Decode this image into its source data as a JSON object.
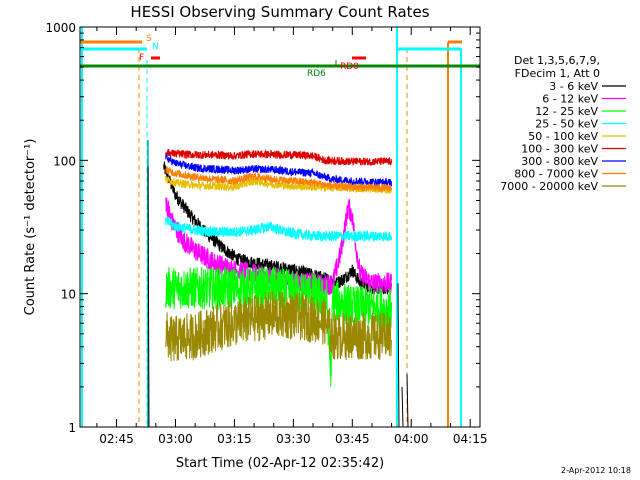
{
  "chart_data": {
    "type": "line",
    "title": "HESSI Observing Summary Count Rates",
    "xlabel": "Start Time (02-Apr-12 02:35:42)",
    "ylabel": "Count Rate (s⁻¹ detector⁻¹)",
    "y_scale": "log",
    "ylim": [
      1,
      1000
    ],
    "xlim": [
      "02:35:42",
      "04:17:30"
    ],
    "x_ticks": [
      "02:45",
      "03:00",
      "03:15",
      "03:30",
      "03:45",
      "04:00",
      "04:15"
    ],
    "y_ticks": [
      "1",
      "10",
      "100",
      "1000"
    ],
    "legend": {
      "header": [
        "Det 1,3,5,6,7,9,",
        "FDecim 1, Att 0"
      ],
      "position": "right"
    },
    "series": [
      {
        "name": "3 - 6 keV",
        "color": "#000000",
        "points": [
          [
            "02:57:00",
            90
          ],
          [
            "03:00:00",
            55
          ],
          [
            "03:04:00",
            38
          ],
          [
            "03:08:00",
            28
          ],
          [
            "03:12:00",
            22
          ],
          [
            "03:16:00",
            18
          ],
          [
            "03:20:00",
            17
          ],
          [
            "03:25:00",
            16
          ],
          [
            "03:30:00",
            15
          ],
          [
            "03:34:00",
            14
          ],
          [
            "03:38:00",
            13
          ],
          [
            "03:41:00",
            12
          ],
          [
            "03:43:00",
            13
          ],
          [
            "03:45:00",
            15
          ],
          [
            "03:47:00",
            12
          ],
          [
            "03:50:00",
            11
          ],
          [
            "03:54:00",
            11
          ],
          [
            "03:55:00",
            11
          ]
        ]
      },
      {
        "name": "6 - 12 keV",
        "color": "#ff00ff",
        "points": [
          [
            "02:57:30",
            50
          ],
          [
            "02:59:00",
            35
          ],
          [
            "03:02:00",
            25
          ],
          [
            "03:06:00",
            20
          ],
          [
            "03:10:00",
            17
          ],
          [
            "03:15:00",
            15
          ],
          [
            "03:20:00",
            14
          ],
          [
            "03:25:00",
            13
          ],
          [
            "03:30:00",
            12.5
          ],
          [
            "03:35:00",
            12
          ],
          [
            "03:38:00",
            11.5
          ],
          [
            "03:40:00",
            12
          ],
          [
            "03:42:00",
            20
          ],
          [
            "03:43:00",
            30
          ],
          [
            "03:44:00",
            45
          ],
          [
            "03:45:00",
            38
          ],
          [
            "03:46:00",
            22
          ],
          [
            "03:47:00",
            14
          ],
          [
            "03:50:00",
            12
          ],
          [
            "03:55:00",
            12
          ]
        ]
      },
      {
        "name": "12 - 25 keV",
        "color": "#00ff00",
        "points": [
          [
            "02:57:30",
            11
          ],
          [
            "03:05:00",
            11
          ],
          [
            "03:15:00",
            11
          ],
          [
            "03:25:00",
            11
          ],
          [
            "03:35:00",
            10
          ],
          [
            "03:38:30",
            9
          ],
          [
            "03:39:30",
            2.5
          ],
          [
            "03:40:00",
            9
          ],
          [
            "03:45:00",
            8
          ],
          [
            "03:50:00",
            8
          ],
          [
            "03:55:00",
            7.5
          ]
        ]
      },
      {
        "name": "25 - 50 keV",
        "color": "#00ffff",
        "points": [
          [
            "02:57:30",
            35
          ],
          [
            "03:00:00",
            32
          ],
          [
            "03:05:00",
            30
          ],
          [
            "03:10:00",
            29
          ],
          [
            "03:15:00",
            29
          ],
          [
            "03:20:00",
            30
          ],
          [
            "03:24:00",
            32
          ],
          [
            "03:28:00",
            29
          ],
          [
            "03:35:00",
            27
          ],
          [
            "03:45:00",
            27
          ],
          [
            "03:55:00",
            27
          ]
        ]
      },
      {
        "name": "50 - 100 keV",
        "color": "#e6c000",
        "points": [
          [
            "02:57:30",
            72
          ],
          [
            "03:00:00",
            68
          ],
          [
            "03:05:00",
            65
          ],
          [
            "03:10:00",
            64
          ],
          [
            "03:15:00",
            63
          ],
          [
            "03:20:00",
            70
          ],
          [
            "03:25:00",
            66
          ],
          [
            "03:30:00",
            64
          ],
          [
            "03:35:00",
            63
          ],
          [
            "03:45:00",
            62
          ],
          [
            "03:55:00",
            60
          ]
        ]
      },
      {
        "name": "100 - 300 keV",
        "color": "#dd0000",
        "points": [
          [
            "02:57:30",
            115
          ],
          [
            "03:00:00",
            112
          ],
          [
            "03:05:00",
            110
          ],
          [
            "03:10:00",
            110
          ],
          [
            "03:15:00",
            108
          ],
          [
            "03:20:00",
            112
          ],
          [
            "03:25:00",
            110
          ],
          [
            "03:30:00",
            110
          ],
          [
            "03:35:00",
            108
          ],
          [
            "03:38:00",
            100
          ],
          [
            "03:45:00",
            98
          ],
          [
            "03:55:00",
            98
          ]
        ]
      },
      {
        "name": "300 - 800 keV",
        "color": "#0000ff",
        "points": [
          [
            "02:57:30",
            105
          ],
          [
            "03:00:00",
            95
          ],
          [
            "03:05:00",
            88
          ],
          [
            "03:10:00",
            86
          ],
          [
            "03:15:00",
            84
          ],
          [
            "03:20:00",
            86
          ],
          [
            "03:25:00",
            85
          ],
          [
            "03:30:00",
            82
          ],
          [
            "03:35:00",
            80
          ],
          [
            "03:40:00",
            72
          ],
          [
            "03:45:00",
            70
          ],
          [
            "03:55:00",
            68
          ]
        ]
      },
      {
        "name": "800 - 7000 keV",
        "color": "#ff8000",
        "points": [
          [
            "02:57:30",
            85
          ],
          [
            "03:00:00",
            80
          ],
          [
            "03:05:00",
            75
          ],
          [
            "03:10:00",
            72
          ],
          [
            "03:15:00",
            70
          ],
          [
            "03:20:00",
            76
          ],
          [
            "03:25:00",
            72
          ],
          [
            "03:30:00",
            70
          ],
          [
            "03:35:00",
            68
          ],
          [
            "03:40:00",
            64
          ],
          [
            "03:45:00",
            63
          ],
          [
            "03:55:00",
            62
          ]
        ]
      },
      {
        "name": "7000 - 20000 keV",
        "color": "#998800",
        "points": [
          [
            "02:57:30",
            5
          ],
          [
            "02:59:00",
            4.5
          ],
          [
            "03:05:00",
            4.8
          ],
          [
            "03:10:00",
            5.5
          ],
          [
            "03:15:00",
            6
          ],
          [
            "03:20:00",
            6.5
          ],
          [
            "03:25:00",
            7
          ],
          [
            "03:30:00",
            6.8
          ],
          [
            "03:35:00",
            6.5
          ],
          [
            "03:38:00",
            6.2
          ],
          [
            "03:40:00",
            4.8
          ],
          [
            "03:45:00",
            4.8
          ],
          [
            "03:55:00",
            4.8
          ]
        ]
      }
    ],
    "flags": [
      {
        "label": "S",
        "color": "#ff8000"
      },
      {
        "label": "F",
        "color": "#ff0000"
      },
      {
        "label": "N",
        "color": "#00ffff"
      },
      {
        "label": "RD0",
        "color": "#ff0000"
      },
      {
        "label": "RD6",
        "color": "#008800"
      }
    ],
    "footer_date": "2-Apr-2012 10:18"
  }
}
